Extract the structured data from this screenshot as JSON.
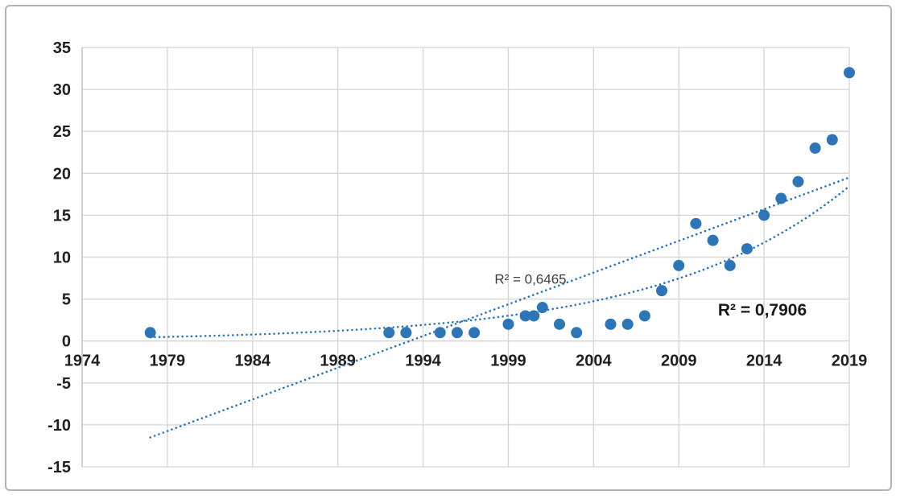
{
  "figure": {
    "background": "#ffffff",
    "border_color": "#b3b3b3"
  },
  "chart_data": {
    "type": "scatter",
    "title": "",
    "xlabel": "",
    "ylabel": "",
    "series_color": "#2e75b6",
    "gridline_color": "#d6d6d6",
    "axis_line_color": "#bfbfbf",
    "tick_text_color": "#1f1f1f",
    "xlim": [
      1974,
      2019
    ],
    "ylim": [
      -15,
      35
    ],
    "x_ticks": [
      1974,
      1979,
      1984,
      1989,
      1994,
      1999,
      2004,
      2009,
      2014,
      2019
    ],
    "y_ticks": [
      -15,
      -10,
      -5,
      0,
      5,
      10,
      15,
      20,
      25,
      30,
      35
    ],
    "grid": true,
    "legend": "none",
    "points": [
      {
        "x": 1978,
        "y": 1
      },
      {
        "x": 1992,
        "y": 1
      },
      {
        "x": 1993,
        "y": 1
      },
      {
        "x": 1995,
        "y": 1
      },
      {
        "x": 1996,
        "y": 1
      },
      {
        "x": 1997,
        "y": 1
      },
      {
        "x": 1999,
        "y": 2
      },
      {
        "x": 2000,
        "y": 3
      },
      {
        "x": 2000.5,
        "y": 3
      },
      {
        "x": 2001,
        "y": 4
      },
      {
        "x": 2002,
        "y": 2
      },
      {
        "x": 2003,
        "y": 1
      },
      {
        "x": 2005,
        "y": 2
      },
      {
        "x": 2006,
        "y": 2
      },
      {
        "x": 2007,
        "y": 3
      },
      {
        "x": 2008,
        "y": 6
      },
      {
        "x": 2009,
        "y": 9
      },
      {
        "x": 2010,
        "y": 14
      },
      {
        "x": 2011,
        "y": 12
      },
      {
        "x": 2012,
        "y": 9
      },
      {
        "x": 2013,
        "y": 11
      },
      {
        "x": 2014,
        "y": 15
      },
      {
        "x": 2015,
        "y": 17
      },
      {
        "x": 2016,
        "y": 19
      },
      {
        "x": 2017,
        "y": 23
      },
      {
        "x": 2018,
        "y": 24
      },
      {
        "x": 2019,
        "y": 32
      }
    ],
    "trendlines": [
      {
        "kind": "linear",
        "style": "dotted",
        "start": {
          "x": 1978,
          "y": -11.5
        },
        "end": {
          "x": 2019,
          "y": 19.5
        },
        "r_squared": "R² = 0,6465"
      },
      {
        "kind": "exponential",
        "style": "dotted",
        "a": 0.313,
        "b": 0.0906,
        "t0": 1974,
        "x_start": 1978,
        "x_end": 2019,
        "r_squared": "R² = 0,7906"
      }
    ],
    "annotations": [
      {
        "text": "R² = 0,6465",
        "x": 2000.3,
        "y": 7.4,
        "bold": false,
        "size": 17,
        "color": "#3f3f3f"
      },
      {
        "text": "R² = 0,7906",
        "x": 2013.9,
        "y": 3.6,
        "bold": true,
        "size": 21,
        "color": "#1a1a1a"
      }
    ]
  }
}
